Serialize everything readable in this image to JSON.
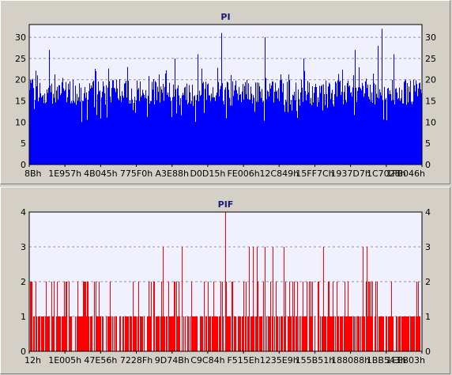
{
  "chart_data": [
    {
      "type": "bar",
      "title": "PI",
      "ylim": [
        0,
        33
      ],
      "yticks": [
        0,
        5,
        10,
        15,
        20,
        25,
        30
      ],
      "x_tick_labels": [
        "8Bh",
        "1E957h",
        "4B045h",
        "775F0h",
        "A3E88h",
        "D0D15h",
        "FE006h",
        "12C849h",
        "15FF7Ch",
        "1937D7h",
        "1C7028h",
        "1FB046h"
      ],
      "color": "#0000ff",
      "grid": true,
      "spikes": [
        [
          0.05,
          27
        ],
        [
          0.11,
          20
        ],
        [
          0.17,
          22
        ],
        [
          0.25,
          23
        ],
        [
          0.37,
          25
        ],
        [
          0.43,
          26
        ],
        [
          0.49,
          31
        ],
        [
          0.6,
          30
        ],
        [
          0.7,
          25
        ],
        [
          0.83,
          27
        ],
        [
          0.89,
          28
        ],
        [
          0.9,
          32
        ],
        [
          0.93,
          26
        ]
      ],
      "baseline_range": [
        14,
        20
      ]
    },
    {
      "type": "bar",
      "title": "PIF",
      "ylim": [
        0,
        4
      ],
      "yticks": [
        0,
        1,
        2,
        3,
        4
      ],
      "x_tick_labels": [
        "12h",
        "1E005h",
        "47E56h",
        "7228Fh",
        "9D74Bh",
        "C9C84h",
        "F515Eh",
        "1235E9h",
        "155B51h",
        "188088h",
        "1BB543h",
        "1EEB03h"
      ],
      "color": "#ff0000",
      "grid": true,
      "spikes": [
        [
          0.34,
          3
        ],
        [
          0.39,
          3
        ],
        [
          0.5,
          4
        ],
        [
          0.56,
          3
        ],
        [
          0.57,
          3
        ],
        [
          0.58,
          3
        ],
        [
          0.6,
          3
        ],
        [
          0.62,
          3
        ],
        [
          0.65,
          3
        ],
        [
          0.75,
          3
        ],
        [
          0.85,
          3
        ],
        [
          0.86,
          3
        ]
      ],
      "baseline_range": [
        1,
        2
      ]
    }
  ]
}
